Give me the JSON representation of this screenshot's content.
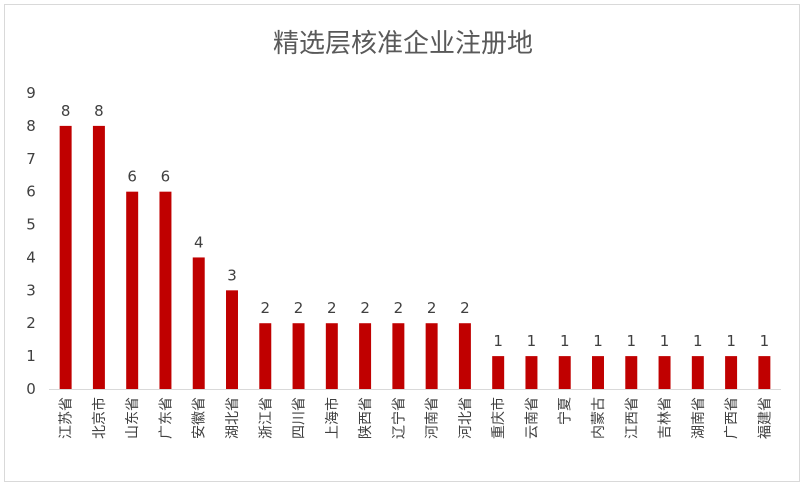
{
  "chart_data": {
    "type": "bar",
    "title": "精选层核准企业注册地",
    "categories": [
      "江苏省",
      "北京市",
      "山东省",
      "广东省",
      "安徽省",
      "湖北省",
      "浙江省",
      "四川省",
      "上海市",
      "陕西省",
      "辽宁省",
      "河南省",
      "河北省",
      "重庆市",
      "云南省",
      "宁夏",
      "内蒙古",
      "江西省",
      "吉林省",
      "湖南省",
      "广西省",
      "福建省"
    ],
    "values": [
      8,
      8,
      6,
      6,
      4,
      3,
      2,
      2,
      2,
      2,
      2,
      2,
      2,
      1,
      1,
      1,
      1,
      1,
      1,
      1,
      1,
      1
    ],
    "ylim": [
      0,
      9
    ],
    "yticks": [
      0,
      1,
      2,
      3,
      4,
      5,
      6,
      7,
      8,
      9
    ],
    "xlabel": "",
    "ylabel": "",
    "grid": false,
    "bar_color": "#c00000",
    "axis_color": "#d9d9d9",
    "text_color": "#404040"
  }
}
